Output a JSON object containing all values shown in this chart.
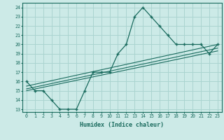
{
  "xlabel": "Humidex (Indice chaleur)",
  "ylabel": "",
  "background_color": "#cceae7",
  "grid_color": "#aad4d0",
  "line_color": "#1a6b5e",
  "xlim": [
    -0.5,
    23.5
  ],
  "ylim": [
    12.7,
    24.5
  ],
  "xticks": [
    0,
    1,
    2,
    3,
    4,
    5,
    6,
    7,
    8,
    9,
    10,
    11,
    12,
    13,
    14,
    15,
    16,
    17,
    18,
    19,
    20,
    21,
    22,
    23
  ],
  "yticks": [
    13,
    14,
    15,
    16,
    17,
    18,
    19,
    20,
    21,
    22,
    23,
    24
  ],
  "main_x": [
    0,
    1,
    2,
    3,
    4,
    5,
    6,
    7,
    8,
    9,
    10,
    11,
    12,
    13,
    14,
    15,
    16,
    17,
    18,
    19,
    20,
    21,
    22,
    23
  ],
  "main_y": [
    16,
    15,
    15,
    14,
    13,
    13,
    13,
    15,
    17,
    17,
    17,
    19,
    20,
    23,
    24,
    23,
    22,
    21,
    20,
    20,
    20,
    20,
    19,
    20
  ],
  "line2_x": [
    0,
    23
  ],
  "line2_y": [
    15.5,
    20.0
  ],
  "line3_x": [
    0,
    23
  ],
  "line3_y": [
    15.0,
    19.3
  ],
  "line4_x": [
    0,
    23
  ],
  "line4_y": [
    15.2,
    19.6
  ]
}
